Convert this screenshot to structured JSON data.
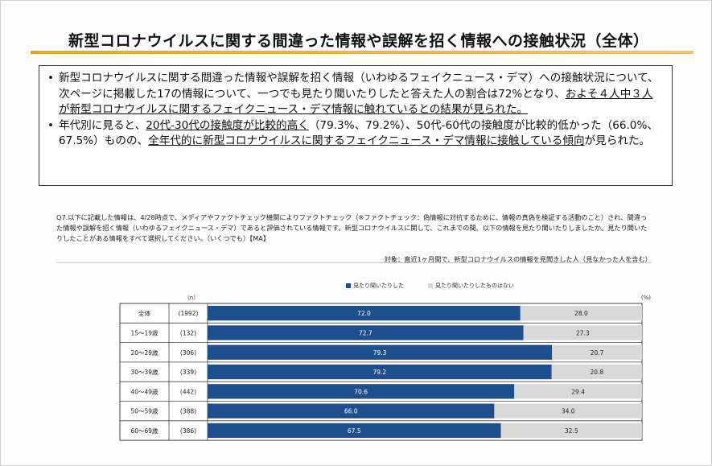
{
  "page": {
    "title": "新型コロナウイルスに関する間違った情報や誤解を招く情報への接触状況（全体）"
  },
  "summary": {
    "b1": "新型コロナウイルスに関する間違った情報や誤解を招く情報（いわゆるフェイクニュース・デマ）への接触状況について、次ページに掲載した17の情報について、一つでも見たり聞いたりしたと答えた人の割合は72%となり、",
    "b1_u": "およそ４人中３人が新型コロナウイルスに関するフェイクニュース・デマ情報に触れているとの結果が見られた。",
    "b2_a": "年代別に見ると、",
    "b2_u1": "20代-30代の接触度が比較的高く",
    "b2_b": "（79.3%、79.2%）、50代-60代の接触度が比較的低かった（66.0%、67.5%）ものの、",
    "b2_u2": "全年代的に新型コロナウイルスに関するフェイクニュース・デマ情報に接触している傾向",
    "b2_c": "が見られた。"
  },
  "question": {
    "text": "Q7.以下に記載した情報は、4/28時点で、メディアやファクトチェック機関によりファクトチェック（※ファクトチェック：偽情報に対抗するために、情報の真偽を検証する活動のこと）され、間違った情報や誤解を招く情報（いわゆるフェイクニュース・デマ）であると評価されている情報です。新型コロナウイルスに関して、これまでの間、以下の情報を見たり聞いたりしましたか。見たり聞いたりしたことがある情報をすべて選択してください。（いくつでも）【MA】",
    "target": "対象：直近1ヶ月間で、新型コロナウイルスの情報を見聞きした人（見なかった人を含む）"
  },
  "chart_data": {
    "type": "bar",
    "orientation": "horizontal",
    "stacked": true,
    "n_header": "（n）",
    "unit_label": "(%)",
    "categories": [
      "全体",
      "15～19歳",
      "20～29歳",
      "30～39歳",
      "40～49歳",
      "50～59歳",
      "60～69歳"
    ],
    "n": [
      "(1992)",
      "(132)",
      "(306)",
      "(339)",
      "(442)",
      "(388)",
      "(386)"
    ],
    "series": [
      {
        "name": "見たり聞いたりした",
        "values": [
          72.0,
          72.7,
          79.3,
          79.2,
          70.6,
          66.0,
          67.5
        ],
        "color": "#1f4e8c"
      },
      {
        "name": "見たり聞いたりしたものはない",
        "values": [
          28.0,
          27.3,
          20.7,
          20.8,
          29.4,
          34.0,
          32.5
        ],
        "color": "#d9d9d9"
      }
    ],
    "xlim": [
      0,
      100
    ],
    "legend": "top",
    "grid": false
  }
}
